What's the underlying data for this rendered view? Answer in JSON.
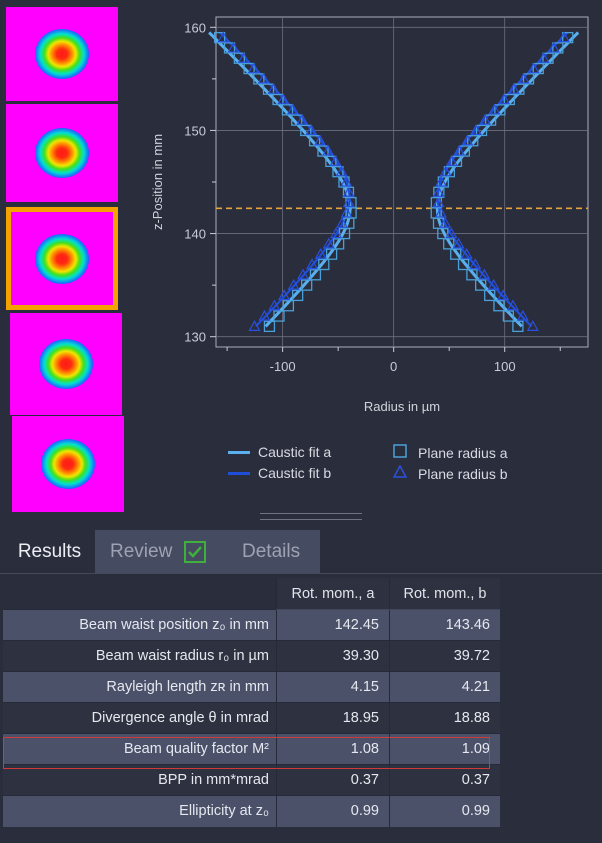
{
  "beam_images": [
    {
      "selected": false
    },
    {
      "selected": false
    },
    {
      "selected": true
    },
    {
      "selected": false
    },
    {
      "selected": false
    }
  ],
  "colors": {
    "background": "#2a2d3c",
    "caustic_fit_a": "#5ab0ee",
    "caustic_fit_b": "#1f4fd8",
    "plane_marker": "#4aa0d8",
    "waist_line": "#e8a33c",
    "selection": "#f3a200",
    "highlight_border": "#d03a3a",
    "check": "#3fb039"
  },
  "chart_data": {
    "type": "scatter",
    "xlabel": "Radius in µm",
    "ylabel": "z-Position in mm",
    "xlim": [
      -160,
      175
    ],
    "ylim": [
      129,
      161
    ],
    "x_ticks": [
      "-100",
      "0",
      "100"
    ],
    "y_ticks": [
      "130",
      "140",
      "150",
      "160"
    ],
    "grid": true,
    "legend_position": "bottom",
    "waist_position_marker": 142.45,
    "caustic_a": {
      "z0": 142.45,
      "r0": 39.3,
      "zR": 4.15
    },
    "caustic_b": {
      "z0": 143.46,
      "r0": 39.72,
      "zR": 4.21
    },
    "plane_z": [
      131.0,
      132.0,
      133.0,
      134.0,
      135.0,
      136.0,
      137.0,
      138.0,
      139.0,
      140.0,
      141.0,
      142.0,
      143.0,
      144.0,
      145.0,
      146.0,
      147.0,
      148.0,
      149.0,
      150.0,
      151.0,
      152.0,
      153.0,
      154.0,
      155.0,
      156.0,
      157.0,
      158.0,
      159.0
    ],
    "series": [
      {
        "name": "Caustic fit a"
      },
      {
        "name": "Caustic fit b"
      },
      {
        "name": "Plane radius a"
      },
      {
        "name": "Plane radius b"
      }
    ]
  },
  "legend": {
    "caustic_a": "Caustic fit a",
    "caustic_b": "Caustic fit b",
    "plane_a": "Plane radius a",
    "plane_b": "Plane radius b"
  },
  "tabs": {
    "results": "Results",
    "review": "Review",
    "details": "Details"
  },
  "table": {
    "headers": [
      "Rot. mom., a",
      "Rot. mom., b"
    ],
    "rows": [
      {
        "label": "Beam waist position z₀ in mm",
        "a": "142.45",
        "b": "143.46"
      },
      {
        "label": "Beam waist radius r₀ in µm",
        "a": "39.30",
        "b": "39.72"
      },
      {
        "label": "Rayleigh length zʀ in mm",
        "a": "4.15",
        "b": "4.21"
      },
      {
        "label": "Divergence angle θ in mrad",
        "a": "18.95",
        "b": "18.88"
      },
      {
        "label": "Beam quality factor M²",
        "a": "1.08",
        "b": "1.09"
      },
      {
        "label": "BPP in mm*mrad",
        "a": "0.37",
        "b": "0.37"
      },
      {
        "label": "Ellipticity at z₀",
        "a": "0.99",
        "b": "0.99"
      }
    ]
  }
}
